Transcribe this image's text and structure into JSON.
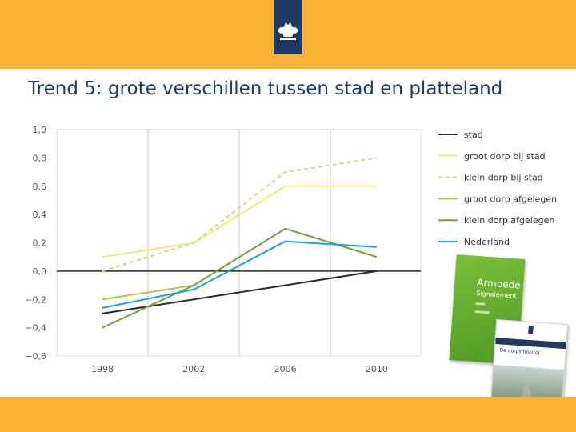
{
  "slide": {
    "title": "Trend 5: grote verschillen tussen stad en platteland"
  },
  "colors": {
    "header_band": "#f9b233",
    "logo_tab": "#1f3b62",
    "title_text": "#1b3c6b",
    "book_green": "#5aa52b"
  },
  "icons": {
    "logo": "crest-icon"
  },
  "chart_data": {
    "type": "line",
    "categories": [
      "1998",
      "2002",
      "2006",
      "2010"
    ],
    "ylim": [
      -0.6,
      1.0
    ],
    "yticks": [
      "1,0",
      "0,8",
      "0,6",
      "0,4",
      "0,2",
      "0,0",
      "−0,2",
      "−0,4",
      "−0,6"
    ],
    "grid": true,
    "legend_position": "right",
    "series": [
      {
        "name": "stad",
        "values": [
          -0.3,
          -0.2,
          -0.1,
          0.0
        ],
        "color": "#2b2b2b",
        "dash": false
      },
      {
        "name": "groot dorp bij stad",
        "values": [
          0.1,
          0.2,
          0.6,
          0.6
        ],
        "color": "#f0ea6f",
        "dash": false
      },
      {
        "name": "klein dorp bij stad",
        "values": [
          0.0,
          0.2,
          0.7,
          0.8
        ],
        "color": "#c9d97e",
        "dash": true
      },
      {
        "name": "groot dorp afgelegen",
        "values": [
          -0.2,
          -0.1,
          null,
          null
        ],
        "color": "#a9c94a",
        "dash": false
      },
      {
        "name": "klein dorp afgelegen",
        "values": [
          -0.4,
          -0.1,
          0.3,
          0.1
        ],
        "color": "#6aa23d",
        "dash": false
      },
      {
        "name": "Nederland",
        "values": [
          -0.26,
          -0.13,
          0.21,
          0.17
        ],
        "color": "#1aa3d9",
        "dash": false
      }
    ]
  },
  "books": {
    "armoede": {
      "title": "Armoede",
      "subtitle": "Signalement"
    },
    "dorpsmonitor": {
      "title": "De dorpsmonitor"
    }
  }
}
